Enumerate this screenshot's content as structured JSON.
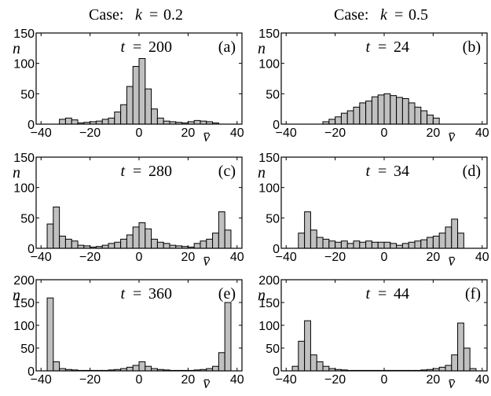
{
  "columns": [
    {
      "prefix": "Case:",
      "var": "k",
      "eq": "=",
      "value": "0.2"
    },
    {
      "prefix": "Case:",
      "var": "k",
      "eq": "=",
      "value": "0.5"
    }
  ],
  "axis_symbols": {
    "x": "v̄",
    "y": "n"
  },
  "chart_data": [
    {
      "type": "bar",
      "panel": "(a)",
      "time_var": "t",
      "time_value": "200",
      "xlim": [
        -42,
        42
      ],
      "ylim": [
        0,
        150
      ],
      "bin_width": 2.5,
      "xticks": [
        -40,
        -20,
        0,
        20,
        40
      ],
      "yticks": [
        0,
        50,
        100,
        150
      ],
      "x": [
        -31.25,
        -28.75,
        -26.25,
        -23.75,
        -21.25,
        -18.75,
        -16.25,
        -13.75,
        -11.25,
        -8.75,
        -6.25,
        -3.75,
        -1.25,
        1.25,
        3.75,
        6.25,
        8.75,
        11.25,
        13.75,
        16.25,
        18.75,
        21.25,
        23.75,
        26.25,
        28.75,
        31.25
      ],
      "values": [
        8,
        10,
        7,
        2,
        3,
        4,
        5,
        8,
        10,
        20,
        32,
        62,
        95,
        108,
        58,
        25,
        10,
        5,
        4,
        3,
        2,
        4,
        6,
        5,
        4,
        2
      ]
    },
    {
      "type": "bar",
      "panel": "(b)",
      "time_var": "t",
      "time_value": "24",
      "xlim": [
        -42,
        42
      ],
      "ylim": [
        0,
        150
      ],
      "bin_width": 2.5,
      "xticks": [
        -40,
        -20,
        0,
        20,
        40
      ],
      "yticks": [
        0,
        50,
        100,
        150
      ],
      "x": [
        -23.75,
        -21.25,
        -18.75,
        -16.25,
        -13.75,
        -11.25,
        -8.75,
        -6.25,
        -3.75,
        -1.25,
        1.25,
        3.75,
        6.25,
        8.75,
        11.25,
        13.75,
        16.25,
        18.75,
        21.25
      ],
      "values": [
        4,
        8,
        12,
        18,
        22,
        28,
        35,
        38,
        45,
        48,
        50,
        47,
        44,
        42,
        35,
        28,
        22,
        15,
        10
      ]
    },
    {
      "type": "bar",
      "panel": "(c)",
      "time_var": "t",
      "time_value": "280",
      "xlim": [
        -42,
        42
      ],
      "ylim": [
        0,
        150
      ],
      "bin_width": 2.5,
      "xticks": [
        -40,
        -20,
        0,
        20,
        40
      ],
      "yticks": [
        0,
        50,
        100,
        150
      ],
      "x": [
        -36.25,
        -33.75,
        -31.25,
        -28.75,
        -26.25,
        -23.75,
        -21.25,
        -18.75,
        -16.25,
        -13.75,
        -11.25,
        -8.75,
        -6.25,
        -3.75,
        -1.25,
        1.25,
        3.75,
        6.25,
        8.75,
        11.25,
        13.75,
        16.25,
        18.75,
        21.25,
        23.75,
        26.25,
        28.75,
        31.25,
        33.75,
        36.25
      ],
      "values": [
        40,
        68,
        20,
        15,
        12,
        5,
        4,
        2,
        3,
        5,
        8,
        10,
        15,
        22,
        35,
        42,
        32,
        15,
        10,
        8,
        5,
        4,
        3,
        2,
        8,
        12,
        15,
        25,
        60,
        30
      ]
    },
    {
      "type": "bar",
      "panel": "(d)",
      "time_var": "t",
      "time_value": "34",
      "xlim": [
        -42,
        42
      ],
      "ylim": [
        0,
        150
      ],
      "bin_width": 2.5,
      "xticks": [
        -40,
        -20,
        0,
        20,
        40
      ],
      "yticks": [
        0,
        50,
        100,
        150
      ],
      "x": [
        -33.75,
        -31.25,
        -28.75,
        -26.25,
        -23.75,
        -21.25,
        -18.75,
        -16.25,
        -13.75,
        -11.25,
        -8.75,
        -6.25,
        -3.75,
        -1.25,
        1.25,
        3.75,
        6.25,
        8.75,
        11.25,
        13.75,
        16.25,
        18.75,
        21.25,
        23.75,
        26.25,
        28.75,
        31.25
      ],
      "values": [
        25,
        60,
        30,
        18,
        15,
        12,
        10,
        12,
        8,
        12,
        10,
        12,
        10,
        10,
        10,
        8,
        5,
        8,
        10,
        12,
        14,
        18,
        20,
        25,
        35,
        48,
        25
      ]
    },
    {
      "type": "bar",
      "panel": "(e)",
      "time_var": "t",
      "time_value": "360",
      "xlim": [
        -42,
        42
      ],
      "ylim": [
        0,
        200
      ],
      "bin_width": 2.5,
      "xticks": [
        -40,
        -20,
        0,
        20,
        40
      ],
      "yticks": [
        0,
        50,
        100,
        150,
        200
      ],
      "x": [
        -36.25,
        -33.75,
        -31.25,
        -28.75,
        -26.25,
        -23.75,
        -21.25,
        -18.75,
        -16.25,
        -13.75,
        -11.25,
        -8.75,
        -6.25,
        -3.75,
        -1.25,
        1.25,
        3.75,
        6.25,
        8.75,
        11.25,
        13.75,
        16.25,
        18.75,
        21.25,
        23.75,
        26.25,
        28.75,
        31.25,
        33.75,
        36.25
      ],
      "values": [
        160,
        20,
        5,
        3,
        2,
        1,
        1,
        1,
        1,
        1,
        2,
        3,
        5,
        8,
        12,
        20,
        10,
        5,
        3,
        2,
        1,
        1,
        1,
        1,
        2,
        3,
        5,
        10,
        40,
        150
      ]
    },
    {
      "type": "bar",
      "panel": "(f)",
      "time_var": "t",
      "time_value": "44",
      "xlim": [
        -42,
        42
      ],
      "ylim": [
        0,
        200
      ],
      "bin_width": 2.5,
      "xticks": [
        -40,
        -20,
        0,
        20,
        40
      ],
      "yticks": [
        0,
        50,
        100,
        150,
        200
      ],
      "x": [
        -36.25,
        -33.75,
        -31.25,
        -28.75,
        -26.25,
        -23.75,
        -21.25,
        -18.75,
        -16.25,
        -13.75,
        -11.25,
        -8.75,
        -6.25,
        -3.75,
        -1.25,
        1.25,
        3.75,
        6.25,
        8.75,
        11.25,
        13.75,
        16.25,
        18.75,
        21.25,
        23.75,
        26.25,
        28.75,
        31.25,
        33.75,
        36.25
      ],
      "values": [
        10,
        65,
        110,
        35,
        20,
        10,
        5,
        3,
        2,
        1,
        1,
        1,
        1,
        1,
        1,
        1,
        1,
        1,
        1,
        1,
        1,
        2,
        3,
        5,
        8,
        12,
        35,
        105,
        50,
        5
      ]
    }
  ]
}
